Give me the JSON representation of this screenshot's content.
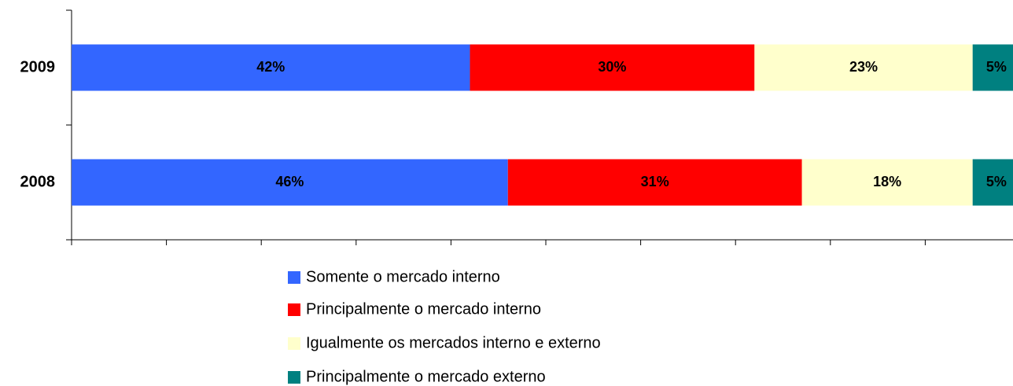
{
  "chart_data": {
    "type": "stacked-bar-horizontal",
    "categories": [
      "2009",
      "2008"
    ],
    "series": [
      {
        "name": "Somente o mercado interno",
        "color": "#3366ff",
        "values": [
          42,
          46
        ],
        "value_labels": [
          "42%",
          "46%"
        ]
      },
      {
        "name": "Principalmente o mercado interno",
        "color": "#ff0000",
        "values": [
          30,
          31
        ],
        "value_labels": [
          "30%",
          "31%"
        ]
      },
      {
        "name": "Igualmente os mercados interno e externo",
        "color": "#ffffcc",
        "values": [
          23,
          18
        ],
        "value_labels": [
          "23%",
          "18%"
        ]
      },
      {
        "name": "Principalmente o mercado externo",
        "color": "#008080",
        "values": [
          5,
          5
        ],
        "value_labels": [
          "5%",
          "5%"
        ]
      }
    ],
    "xlim": [
      0,
      100
    ],
    "xticks": [
      0,
      10,
      20,
      30,
      40,
      50,
      60,
      70,
      80,
      90,
      100
    ]
  }
}
